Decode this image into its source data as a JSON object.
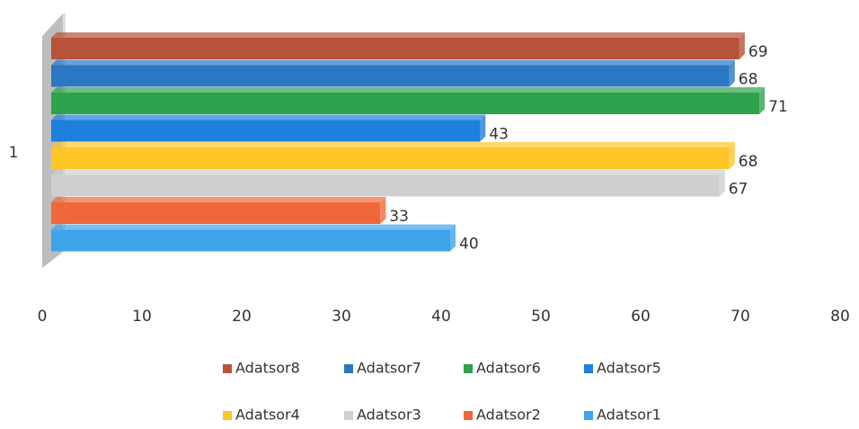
{
  "chart_data": {
    "type": "bar",
    "orientation": "horizontal",
    "categories": [
      "1"
    ],
    "series": [
      {
        "name": "Adatsor8",
        "color": "#b8533a",
        "values": [
          69
        ]
      },
      {
        "name": "Adatsor7",
        "color": "#2a77c4",
        "values": [
          68
        ]
      },
      {
        "name": "Adatsor6",
        "color": "#2ea24c",
        "values": [
          71
        ]
      },
      {
        "name": "Adatsor5",
        "color": "#1c80dc",
        "values": [
          43
        ]
      },
      {
        "name": "Adatsor4",
        "color": "#ffc62a",
        "values": [
          68
        ]
      },
      {
        "name": "Adatsor3",
        "color": "#cfcfcf",
        "values": [
          67
        ]
      },
      {
        "name": "Adatsor2",
        "color": "#f0683a",
        "values": [
          33
        ]
      },
      {
        "name": "Adatsor1",
        "color": "#3ea4ea",
        "values": [
          40
        ]
      }
    ],
    "xlim": [
      0,
      80
    ],
    "xticks": [
      0,
      10,
      20,
      30,
      40,
      50,
      60,
      70,
      80
    ],
    "grid": false
  }
}
